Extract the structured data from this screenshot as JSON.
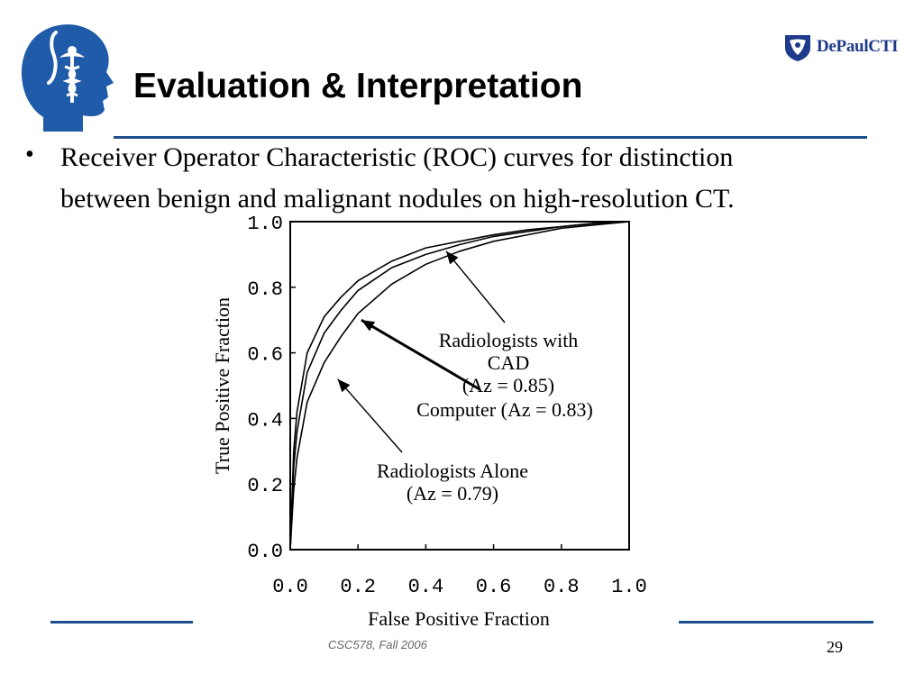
{
  "slide": {
    "title": "Evaluation & Interpretation",
    "bullet_line_1": "Receiver Operator Characteristic (ROC) curves for distinction",
    "bullet_line_2": "between benign and malignant nodules on high-resolution CT.",
    "brand_text": "DePaulCTI",
    "footer_course": "CSC578, Fall 2006",
    "page_number": "29",
    "accent_color": "#1f4e8c"
  },
  "chart_data": {
    "type": "line",
    "xlabel": "False Positive Fraction",
    "ylabel": "True Positive Fraction",
    "xlim": [
      0.0,
      1.0
    ],
    "ylim": [
      0.0,
      1.0
    ],
    "x_ticks": [
      "0.0",
      "0.2",
      "0.4",
      "0.6",
      "0.8",
      "1.0"
    ],
    "y_ticks": [
      "0.0",
      "0.2",
      "0.4",
      "0.6",
      "0.8",
      "1.0"
    ],
    "grid": false,
    "series": [
      {
        "name": "Radiologists with CAD",
        "annotation_lines": [
          "Radiologists with",
          "CAD",
          "(Az = 0.85)"
        ],
        "x": [
          0.0,
          0.01,
          0.02,
          0.05,
          0.1,
          0.15,
          0.2,
          0.3,
          0.4,
          0.5,
          0.6,
          0.7,
          0.8,
          0.9,
          1.0
        ],
        "y": [
          0.0,
          0.3,
          0.42,
          0.6,
          0.71,
          0.77,
          0.82,
          0.88,
          0.92,
          0.94,
          0.96,
          0.975,
          0.985,
          0.995,
          1.0
        ],
        "arrow_at": [
          0.46,
          0.91
        ]
      },
      {
        "name": "Computer",
        "annotation_lines": [
          "Computer (Az = 0.83)"
        ],
        "x": [
          0.0,
          0.01,
          0.02,
          0.05,
          0.1,
          0.15,
          0.2,
          0.3,
          0.4,
          0.5,
          0.6,
          0.7,
          0.8,
          0.9,
          1.0
        ],
        "y": [
          0.0,
          0.25,
          0.36,
          0.54,
          0.66,
          0.73,
          0.79,
          0.86,
          0.9,
          0.93,
          0.955,
          0.97,
          0.985,
          0.995,
          1.0
        ],
        "arrow_at": [
          0.21,
          0.7
        ]
      },
      {
        "name": "Radiologists Alone",
        "annotation_lines": [
          "Radiologists Alone",
          "(Az = 0.79)"
        ],
        "x": [
          0.0,
          0.01,
          0.02,
          0.05,
          0.1,
          0.15,
          0.2,
          0.3,
          0.4,
          0.5,
          0.6,
          0.7,
          0.8,
          0.9,
          1.0
        ],
        "y": [
          0.0,
          0.18,
          0.28,
          0.45,
          0.57,
          0.65,
          0.72,
          0.81,
          0.87,
          0.91,
          0.94,
          0.96,
          0.98,
          0.99,
          1.0
        ],
        "arrow_at": [
          0.14,
          0.52
        ]
      }
    ]
  }
}
